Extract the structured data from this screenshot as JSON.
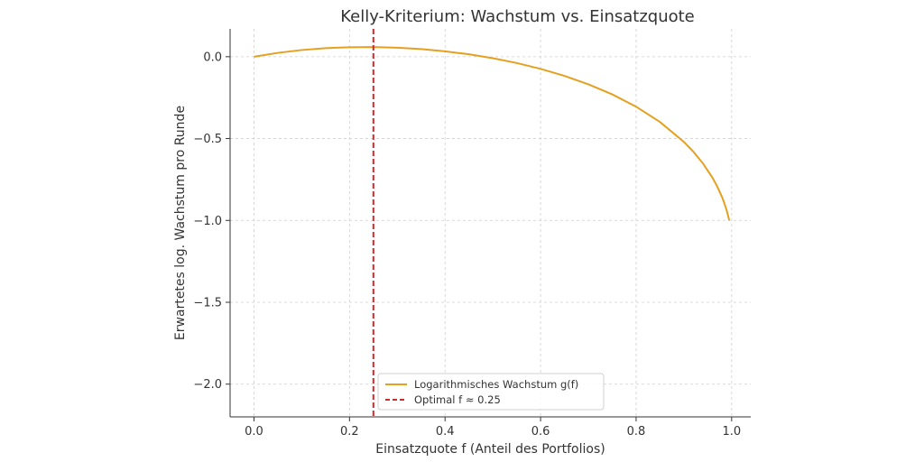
{
  "chart_data": {
    "type": "line",
    "title": "Kelly-Kriterium: Wachstum vs. Einsatzquote",
    "xlabel": "Einsatzquote f (Anteil des Portfolios)",
    "ylabel": "Erwartetes log. Wachstum pro Runde",
    "xlim": [
      -0.05,
      1.04
    ],
    "ylim": [
      -2.2,
      0.17
    ],
    "xticks": [
      0.0,
      0.2,
      0.4,
      0.6,
      0.8,
      1.0
    ],
    "xtick_labels": [
      "0.0",
      "0.2",
      "0.4",
      "0.6",
      "0.8",
      "1.0"
    ],
    "yticks": [
      0.0,
      -0.5,
      -1.0,
      -1.5,
      -2.0
    ],
    "ytick_labels": [
      "0.0",
      "−0.5",
      "−1.0",
      "−1.5",
      "−2.0"
    ],
    "grid": true,
    "legend_position": "lower-center",
    "series": [
      {
        "name": "Logarithmisches Wachstum g(f)",
        "color": "#e6a020",
        "style": "solid",
        "x": [
          0.0,
          0.05,
          0.1,
          0.15,
          0.2,
          0.25,
          0.3,
          0.35,
          0.4,
          0.45,
          0.5,
          0.55,
          0.6,
          0.65,
          0.7,
          0.75,
          0.8,
          0.85,
          0.9,
          0.92,
          0.94,
          0.96,
          0.97,
          0.98,
          0.985,
          0.99,
          0.995
        ],
        "y": [
          0.0,
          0.0236,
          0.0408,
          0.052,
          0.058,
          0.0589,
          0.0551,
          0.0465,
          0.0331,
          0.0148,
          -0.0089,
          -0.0384,
          -0.0742,
          -0.1171,
          -0.1684,
          -0.2301,
          -0.3051,
          -0.3987,
          -0.5203,
          -0.5808,
          -0.6522,
          -0.7397,
          -0.7936,
          -0.8582,
          -0.8971,
          -0.9429,
          -1.0
        ]
      },
      {
        "name": "Optimal f ≈ 0.25",
        "color": "#d62728",
        "style": "dashed",
        "vline_x": 0.25
      }
    ]
  }
}
